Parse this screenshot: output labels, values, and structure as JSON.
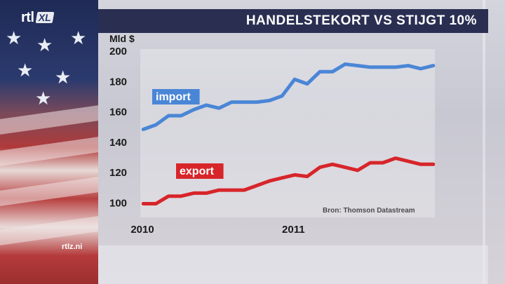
{
  "brand": {
    "logo": "rtl",
    "logo_suffix": "XL",
    "site": "rtlz.ni"
  },
  "header": {
    "title": "HANDELSTEKORT VS STIJGT 10%"
  },
  "chart_data": {
    "type": "line",
    "title": "HANDELSTEKORT VS STIJGT 10%",
    "ylabel": "Mld $",
    "xlabel": "",
    "ylim": [
      90,
      200
    ],
    "yticks": [
      100,
      120,
      140,
      160,
      180,
      200
    ],
    "x": [
      2010.0,
      2010.0833,
      2010.1667,
      2010.25,
      2010.3333,
      2010.4167,
      2010.5,
      2010.5833,
      2010.6667,
      2010.75,
      2010.8333,
      2010.9167,
      2011.0,
      2011.0833,
      2011.1667,
      2011.25,
      2011.3333,
      2011.4167,
      2011.5,
      2011.5833,
      2011.6667,
      2011.75,
      2011.8333,
      2011.9167
    ],
    "xlim": [
      2009.98,
      2011.95
    ],
    "xticks": [
      2010,
      2011
    ],
    "xtick_labels": [
      "2010",
      "2011"
    ],
    "series": [
      {
        "name": "import",
        "color": "#4a86d6",
        "values": [
          148,
          151,
          157,
          157,
          161,
          164,
          162,
          166,
          166,
          166,
          167,
          170,
          181,
          178,
          186,
          186,
          191,
          190,
          189,
          189,
          189,
          190,
          188,
          190
        ]
      },
      {
        "name": "export",
        "color": "#d7252a",
        "values": [
          99,
          99,
          104,
          104,
          106,
          106,
          108,
          108,
          108,
          111,
          114,
          116,
          118,
          117,
          123,
          125,
          123,
          121,
          126,
          126,
          129,
          127,
          125,
          125
        ]
      }
    ],
    "legend": "inline labels",
    "annotations": [
      "Bron: Thomson Datastream"
    ],
    "grid": false
  }
}
